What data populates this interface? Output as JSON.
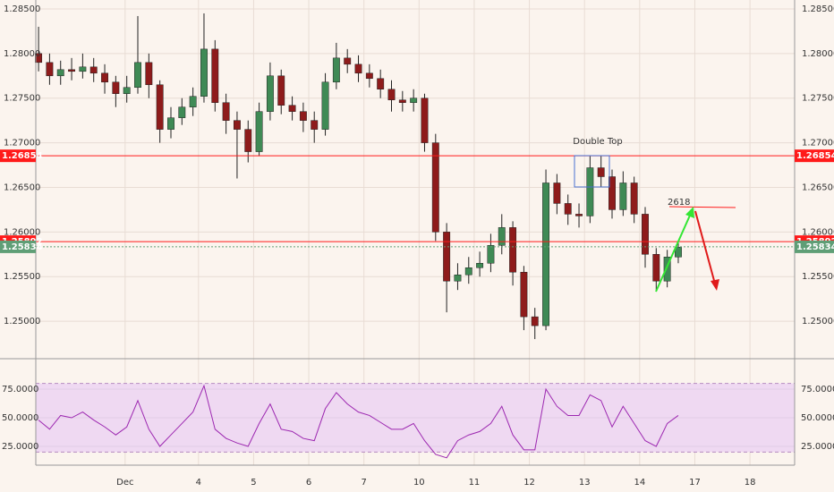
{
  "chart_data": [
    {
      "type": "candlestick",
      "x": [
        1.1,
        1.3,
        1.5,
        1.7,
        1.9,
        2.1,
        2.3,
        2.5,
        2.7,
        2.9,
        3.1,
        3.3,
        3.5,
        3.7,
        3.9,
        4.1,
        4.3,
        4.5,
        4.7,
        4.9,
        5.1,
        5.3,
        5.5,
        5.7,
        5.9,
        6.1,
        6.3,
        6.5,
        6.7,
        6.9,
        7.1,
        7.3,
        7.5,
        7.7,
        7.9,
        8.1,
        8.3,
        8.5,
        8.7,
        8.9,
        9.1,
        9.3,
        9.5,
        9.7,
        9.9,
        10.1,
        10.3,
        10.5,
        10.7,
        10.9,
        11.1,
        11.3,
        11.5,
        11.7,
        11.9,
        12.1,
        12.3,
        12.5,
        12.7
      ],
      "open": [
        1.28,
        1.279,
        1.2775,
        1.2782,
        1.278,
        1.2785,
        1.2778,
        1.2768,
        1.2755,
        1.2762,
        1.279,
        1.2765,
        1.2715,
        1.2728,
        1.274,
        1.2752,
        1.2805,
        1.2745,
        1.2725,
        1.2715,
        1.269,
        1.2735,
        1.2775,
        1.2742,
        1.2735,
        1.2725,
        1.2715,
        1.2768,
        1.2795,
        1.2788,
        1.2778,
        1.2772,
        1.276,
        1.2748,
        1.2745,
        1.275,
        1.27,
        1.26,
        1.2545,
        1.2552,
        1.256,
        1.2565,
        1.2585,
        1.2605,
        1.2555,
        1.2505,
        1.2495,
        1.2655,
        1.2632,
        1.262,
        1.2618,
        1.2672,
        1.2662,
        1.2625,
        1.2655,
        1.262,
        1.2575,
        1.2545,
        1.2572
      ],
      "high": [
        1.283,
        1.28,
        1.2792,
        1.2795,
        1.28,
        1.2795,
        1.2788,
        1.2775,
        1.2775,
        1.2842,
        1.28,
        1.277,
        1.274,
        1.275,
        1.2762,
        1.2845,
        1.2815,
        1.2755,
        1.2735,
        1.2725,
        1.2745,
        1.279,
        1.2782,
        1.2752,
        1.2745,
        1.2735,
        1.2778,
        1.2812,
        1.2805,
        1.2798,
        1.2788,
        1.2782,
        1.277,
        1.2758,
        1.276,
        1.2755,
        1.271,
        1.261,
        1.2565,
        1.2572,
        1.2578,
        1.2598,
        1.262,
        1.2612,
        1.2562,
        1.2515,
        1.267,
        1.2665,
        1.2642,
        1.2632,
        1.2685,
        1.2685,
        1.267,
        1.2668,
        1.2662,
        1.2628,
        1.2582,
        1.258,
        1.2588
      ],
      "low": [
        1.278,
        1.2765,
        1.2765,
        1.277,
        1.2772,
        1.2768,
        1.2755,
        1.274,
        1.2745,
        1.2755,
        1.275,
        1.27,
        1.2705,
        1.272,
        1.273,
        1.2745,
        1.2735,
        1.271,
        1.266,
        1.2678,
        1.2685,
        1.2725,
        1.2732,
        1.2725,
        1.2712,
        1.27,
        1.2708,
        1.276,
        1.2778,
        1.2768,
        1.2762,
        1.275,
        1.2735,
        1.2735,
        1.2735,
        1.269,
        1.259,
        1.251,
        1.2535,
        1.2542,
        1.255,
        1.2555,
        1.2575,
        1.254,
        1.249,
        1.248,
        1.249,
        1.262,
        1.2608,
        1.2605,
        1.261,
        1.265,
        1.2615,
        1.2618,
        1.261,
        1.256,
        1.2535,
        1.2538,
        1.2565
      ],
      "close": [
        1.279,
        1.2775,
        1.2782,
        1.278,
        1.2785,
        1.2778,
        1.2768,
        1.2755,
        1.2762,
        1.279,
        1.2765,
        1.2715,
        1.2728,
        1.274,
        1.2752,
        1.2805,
        1.2745,
        1.2725,
        1.2715,
        1.269,
        1.2735,
        1.2775,
        1.2742,
        1.2735,
        1.2725,
        1.2715,
        1.2768,
        1.2795,
        1.2788,
        1.2778,
        1.2772,
        1.276,
        1.2748,
        1.2745,
        1.275,
        1.27,
        1.26,
        1.2545,
        1.2552,
        1.256,
        1.2565,
        1.2585,
        1.2605,
        1.2555,
        1.2505,
        1.2495,
        1.2655,
        1.2632,
        1.262,
        1.2618,
        1.2672,
        1.2662,
        1.2625,
        1.2655,
        1.262,
        1.2575,
        1.2545,
        1.2572,
        1.2583
      ],
      "up_color": "#3f8a55",
      "down_color": "#8e1b1b",
      "xlim": [
        1.05,
        14.81
      ],
      "xticks": [
        {
          "value": 2.67,
          "label": "Dec"
        },
        {
          "value": 4,
          "label": "4"
        },
        {
          "value": 5,
          "label": "5"
        },
        {
          "value": 6,
          "label": "6"
        },
        {
          "value": 7,
          "label": "7"
        },
        {
          "value": 8,
          "label": "10"
        },
        {
          "value": 9,
          "label": "11"
        },
        {
          "value": 10,
          "label": "12"
        },
        {
          "value": 11,
          "label": "13"
        },
        {
          "value": 12,
          "label": "14"
        },
        {
          "value": 13,
          "label": "17"
        },
        {
          "value": 14,
          "label": "18"
        }
      ],
      "ylim": [
        1.2459,
        1.286
      ],
      "yticks": [
        {
          "value": 1.25,
          "label": "1.25000"
        },
        {
          "value": 1.255,
          "label": "1.25500"
        },
        {
          "value": 1.26,
          "label": "1.26000"
        },
        {
          "value": 1.265,
          "label": "1.26500"
        },
        {
          "value": 1.27,
          "label": "1.27000"
        },
        {
          "value": 1.275,
          "label": "1.27500"
        },
        {
          "value": 1.28,
          "label": "1.28000"
        },
        {
          "value": 1.285,
          "label": "1.28500"
        }
      ],
      "grid": true,
      "levels": [
        {
          "value": 1.26854,
          "color": "#ff1a1a",
          "style": "solid"
        },
        {
          "value": 1.25892,
          "color": "#ff1a1a",
          "style": "solid"
        },
        {
          "value": 1.25834,
          "color": "#5f9e76",
          "style": "dotted"
        }
      ],
      "annotations": [
        "Double Top",
        "2618"
      ]
    },
    {
      "type": "line",
      "x": [
        1.1,
        1.3,
        1.5,
        1.7,
        1.9,
        2.1,
        2.3,
        2.5,
        2.7,
        2.9,
        3.1,
        3.3,
        3.5,
        3.7,
        3.9,
        4.1,
        4.3,
        4.5,
        4.7,
        4.9,
        5.1,
        5.3,
        5.5,
        5.7,
        5.9,
        6.1,
        6.3,
        6.5,
        6.7,
        6.9,
        7.1,
        7.3,
        7.5,
        7.7,
        7.9,
        8.1,
        8.3,
        8.5,
        8.7,
        8.9,
        9.1,
        9.3,
        9.5,
        9.7,
        9.9,
        10.1,
        10.3,
        10.5,
        10.7,
        10.9,
        11.1,
        11.3,
        11.5,
        11.7,
        11.9,
        12.1,
        12.3,
        12.5,
        12.7
      ],
      "series": [
        {
          "color": "#9c27b0",
          "values": [
            48,
            40,
            52,
            50,
            55,
            48,
            42,
            35,
            42,
            65,
            40,
            25,
            35,
            45,
            55,
            78,
            40,
            32,
            28,
            25,
            45,
            62,
            40,
            38,
            32,
            30,
            58,
            72,
            62,
            55,
            52,
            46,
            40,
            40,
            45,
            30,
            18,
            15,
            30,
            35,
            38,
            45,
            60,
            35,
            22,
            22,
            75,
            60,
            52,
            52,
            70,
            65,
            42,
            60,
            45,
            30,
            25,
            45,
            52
          ]
        }
      ],
      "xlim": [
        1.05,
        14.81
      ],
      "ylim": [
        8.6,
        100.8
      ],
      "yticks": [
        {
          "value": 25,
          "label": "25.0000"
        },
        {
          "value": 50,
          "label": "50.0000"
        },
        {
          "value": 75,
          "label": "75.0000"
        }
      ],
      "band": [
        20,
        80
      ],
      "band_color": "#efd9f2"
    }
  ]
}
